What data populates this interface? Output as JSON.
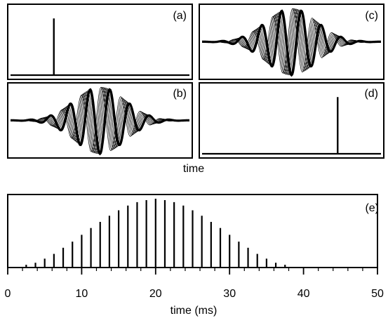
{
  "chart_data": [
    {
      "type": "line",
      "panel_label": "(a)",
      "description_value": "single impulse",
      "impulse": {
        "x": 0.25,
        "height": 0.85
      }
    },
    {
      "type": "line",
      "panel_label": "(b)",
      "signal": "gaussian-enveloped oscillation with overlaid traces",
      "envelope": {
        "center": 0.5,
        "width": 0.2
      },
      "cycles": 9
    },
    {
      "type": "line",
      "panel_label": "(c)",
      "signal": "gaussian-enveloped oscillation with overlaid traces",
      "envelope": {
        "center": 0.5,
        "width": 0.2
      },
      "cycles": 9
    },
    {
      "type": "line",
      "panel_label": "(d)",
      "impulse": {
        "x": 0.75,
        "height": 0.85
      }
    },
    {
      "type": "bar",
      "panel_label": "(e)",
      "xlabel": "time (ms)",
      "xlim": [
        0,
        50
      ],
      "xticks": [
        0,
        10,
        20,
        30,
        40,
        50
      ],
      "ylim": [
        0,
        1
      ],
      "x": [
        0.0,
        1.25,
        2.5,
        3.75,
        5.0,
        6.25,
        7.5,
        8.75,
        10.0,
        11.25,
        12.5,
        13.75,
        15.0,
        16.25,
        17.5,
        18.75,
        20.0,
        21.25,
        22.5,
        23.75,
        25.0,
        26.25,
        27.5,
        28.75,
        30.0,
        31.25,
        32.5,
        33.75,
        35.0,
        36.25,
        37.5,
        38.75,
        40.0
      ],
      "values": [
        0.0,
        0.0,
        0.03,
        0.06,
        0.12,
        0.19,
        0.28,
        0.37,
        0.47,
        0.57,
        0.66,
        0.75,
        0.83,
        0.9,
        0.95,
        0.98,
        1.0,
        0.98,
        0.95,
        0.9,
        0.83,
        0.75,
        0.66,
        0.57,
        0.47,
        0.37,
        0.28,
        0.19,
        0.12,
        0.06,
        0.03,
        0.0,
        0.0
      ]
    }
  ],
  "shared": {
    "top_xlabel": "time"
  }
}
